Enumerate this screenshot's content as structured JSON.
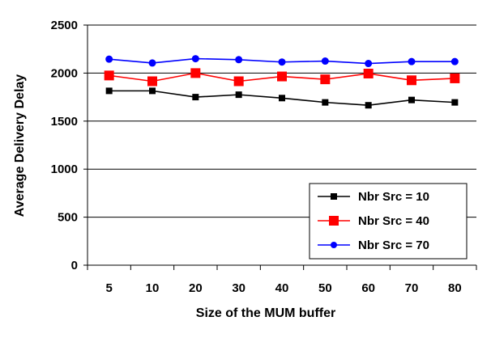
{
  "chart_data": {
    "type": "line",
    "xlabel": "Size of the MUM buffer",
    "ylabel": "Average Delivery Delay",
    "categories": [
      "5",
      "10",
      "20",
      "30",
      "40",
      "50",
      "60",
      "70",
      "80"
    ],
    "ylim": [
      0,
      2500
    ],
    "yticks": [
      0,
      500,
      1000,
      1500,
      2000,
      2500
    ],
    "grid": "horizontal",
    "legend_position": "bottom-right",
    "series": [
      {
        "name": "Nbr Src = 10",
        "color": "#000000",
        "marker": "square",
        "values": [
          1815,
          1815,
          1750,
          1775,
          1740,
          1695,
          1665,
          1720,
          1695
        ]
      },
      {
        "name": "Nbr Src = 40",
        "color": "#ff0000",
        "marker": "square",
        "values": [
          1975,
          1915,
          2000,
          1915,
          1965,
          1935,
          1995,
          1925,
          1945
        ]
      },
      {
        "name": "Nbr Src = 70",
        "color": "#0000ff",
        "marker": "circle",
        "values": [
          2145,
          2105,
          2150,
          2140,
          2115,
          2125,
          2100,
          2120,
          2120
        ]
      }
    ]
  }
}
